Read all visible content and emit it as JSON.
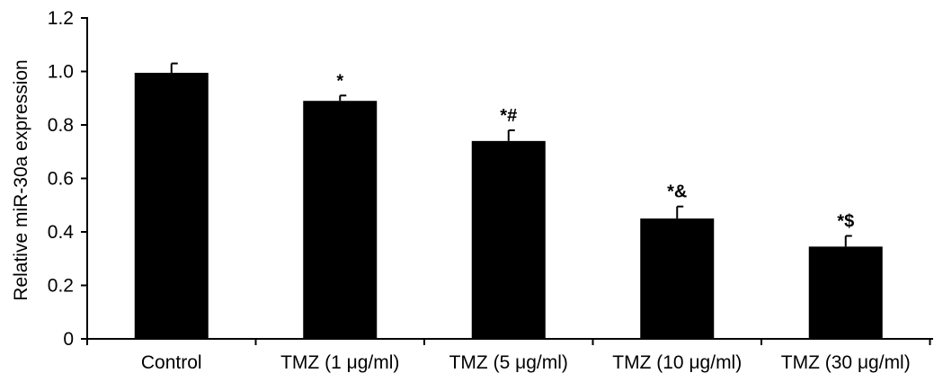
{
  "chart_data": {
    "type": "bar",
    "title": "",
    "xlabel": "",
    "ylabel": "Relative miR-30a expression",
    "ylim": [
      0,
      1.2
    ],
    "yticks": [
      "0",
      "0.2",
      "0.4",
      "0.6",
      "0.8",
      "1.0",
      "1.2"
    ],
    "grid": false,
    "categories": [
      "Control",
      "TMZ (1 μg/ml)",
      "TMZ (5 μg/ml)",
      "TMZ (10 μg/ml)",
      "TMZ (30 μg/ml)"
    ],
    "values": [
      0.995,
      0.89,
      0.74,
      0.45,
      0.345
    ],
    "errors": [
      0.035,
      0.02,
      0.04,
      0.045,
      0.04
    ],
    "annotations": [
      "",
      "*",
      "*#",
      "*&",
      "*$"
    ],
    "bar_color": "#000000"
  }
}
